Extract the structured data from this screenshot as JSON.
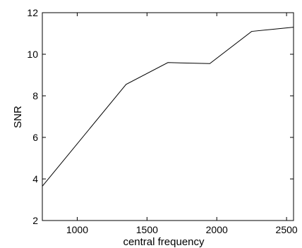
{
  "chart_data": {
    "type": "line",
    "title": "",
    "xlabel": "central frequency",
    "ylabel": "SNR",
    "xlim": [
      750,
      2550
    ],
    "ylim": [
      2,
      12
    ],
    "grid": false,
    "xticks": [
      1000,
      1500,
      2000,
      2500
    ],
    "yticks": [
      2,
      4,
      6,
      8,
      10,
      12
    ],
    "series": [
      {
        "x": [
          750,
          1350,
          1650,
          1950,
          2250,
          2550
        ],
        "y": [
          3.65,
          8.55,
          9.6,
          9.55,
          11.1,
          11.3
        ],
        "color": "#000000"
      }
    ]
  }
}
